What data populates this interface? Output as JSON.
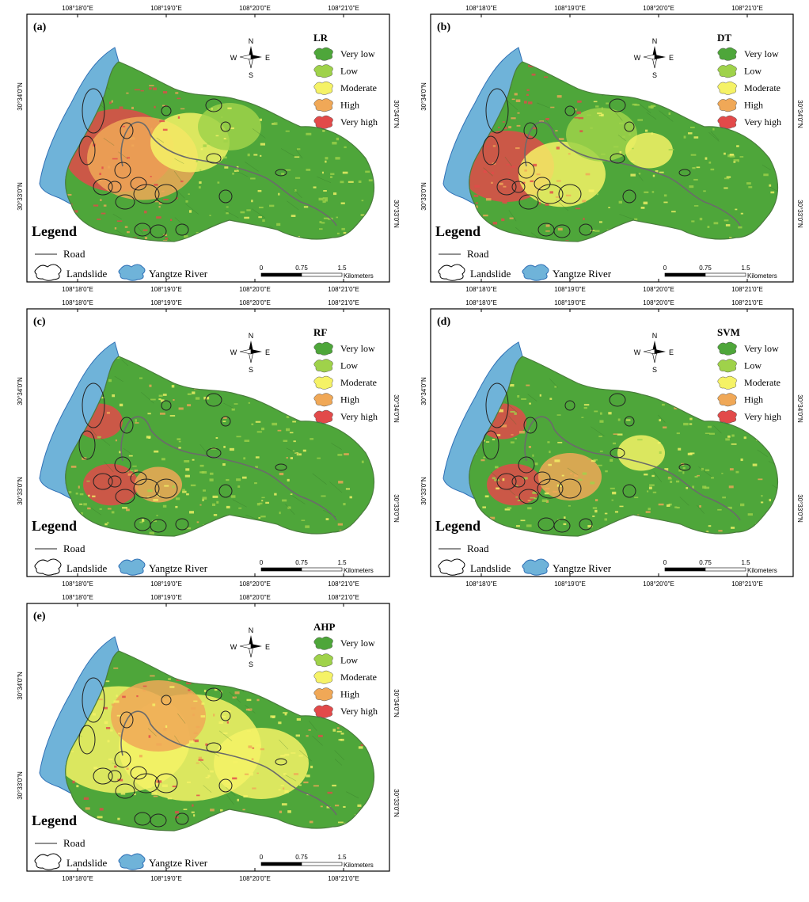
{
  "colors": {
    "very_low": "#4ea63a",
    "low": "#9fd24a",
    "moderate": "#f5f266",
    "high": "#f0a857",
    "very_high": "#e24a4a",
    "river": "#6fb3d9",
    "river_edge": "#2f6fb5",
    "road": "#6b6b6b"
  },
  "axes": {
    "top_labels": [
      "108°18'0\"E",
      "108°19'0\"E",
      "108°20'0\"E",
      "108°21'0\"E"
    ],
    "bottom_labels": [
      "108°18'0\"E",
      "108°19'0\"E",
      "108°20'0\"E",
      "108°21'0\"E"
    ],
    "left_labels": [
      "30°34'0\"N",
      "30°33'0\"N"
    ],
    "right_labels": [
      "30°34'0\"N",
      "30°33'0\"N"
    ]
  },
  "compass": {
    "n": "N",
    "s": "S",
    "e": "E",
    "w": "W"
  },
  "legend_classes": [
    "Very low",
    "Low",
    "Moderate",
    "High",
    "Very high"
  ],
  "map_legend": {
    "title": "Legend",
    "road": "Road",
    "landslide": "Landslide",
    "river": "Yangtze River"
  },
  "scale_bar": {
    "zero": "0",
    "mid": "0.75",
    "max": "1.5",
    "unit": "Kilometers"
  },
  "panels": [
    {
      "letter": "(a)",
      "model": "LR",
      "pattern": "lr"
    },
    {
      "letter": "(b)",
      "model": "DT",
      "pattern": "dt"
    },
    {
      "letter": "(c)",
      "model": "RF",
      "pattern": "rf"
    },
    {
      "letter": "(d)",
      "model": "SVM",
      "pattern": "svm"
    },
    {
      "letter": "(e)",
      "model": "AHP",
      "pattern": "ahp"
    }
  ]
}
